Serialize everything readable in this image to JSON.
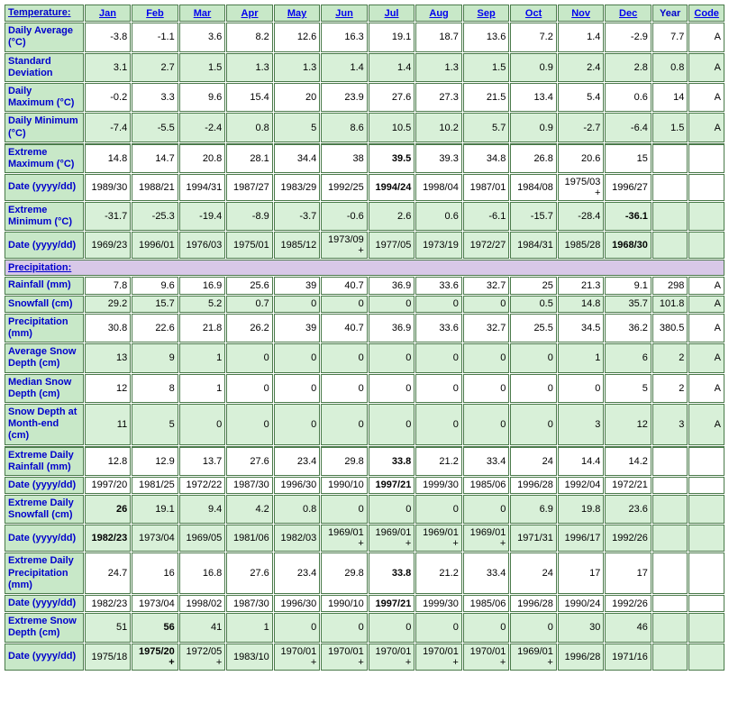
{
  "colors": {
    "header_bg": "#c8e8c8",
    "row_white": "#ffffff",
    "row_green": "#d8f0d8",
    "section_bg": "#d8c8e8",
    "border": "#4a7a4a",
    "link": "#0000cc"
  },
  "header": {
    "corner": "Temperature:",
    "months": [
      "Jan",
      "Feb",
      "Mar",
      "Apr",
      "May",
      "Jun",
      "Jul",
      "Aug",
      "Sep",
      "Oct",
      "Nov",
      "Dec"
    ],
    "year": "Year",
    "code": "Code"
  },
  "sections": [
    {
      "type": "section",
      "label": "Precipitation:"
    }
  ],
  "rows": [
    {
      "id": "daily_avg",
      "label": "Daily Average (°C)",
      "shade": "white",
      "vals": [
        "-3.8",
        "-1.1",
        "3.6",
        "8.2",
        "12.6",
        "16.3",
        "19.1",
        "18.7",
        "13.6",
        "7.2",
        "1.4",
        "-2.9"
      ],
      "year": "7.7",
      "code": "A",
      "bold": []
    },
    {
      "id": "std_dev",
      "label": "Standard Deviation",
      "shade": "green",
      "vals": [
        "3.1",
        "2.7",
        "1.5",
        "1.3",
        "1.3",
        "1.4",
        "1.4",
        "1.3",
        "1.5",
        "0.9",
        "2.4",
        "2.8"
      ],
      "year": "0.8",
      "code": "A",
      "bold": []
    },
    {
      "id": "daily_max",
      "label": "Daily Maximum (°C)",
      "shade": "white",
      "vals": [
        "-0.2",
        "3.3",
        "9.6",
        "15.4",
        "20",
        "23.9",
        "27.6",
        "27.3",
        "21.5",
        "13.4",
        "5.4",
        "0.6"
      ],
      "year": "14",
      "code": "A",
      "bold": []
    },
    {
      "id": "daily_min",
      "label": "Daily Minimum (°C)",
      "shade": "green",
      "vals": [
        "-7.4",
        "-5.5",
        "-2.4",
        "0.8",
        "5",
        "8.6",
        "10.5",
        "10.2",
        "5.7",
        "0.9",
        "-2.7",
        "-6.4"
      ],
      "year": "1.5",
      "code": "A",
      "bold": []
    },
    {
      "id": "ext_max",
      "label": "Extreme Maximum (°C)",
      "shade": "white",
      "vals": [
        "14.8",
        "14.7",
        "20.8",
        "28.1",
        "34.4",
        "38",
        "39.5",
        "39.3",
        "34.8",
        "26.8",
        "20.6",
        "15"
      ],
      "year": "",
      "code": "",
      "bold": [
        6
      ],
      "doubleTop": true
    },
    {
      "id": "ext_max_date",
      "label": "Date (yyyy/dd)",
      "shade": "white",
      "vals": [
        "1989/30",
        "1988/21",
        "1994/31",
        "1987/27",
        "1983/29",
        "1992/25",
        "1994/24",
        "1998/04",
        "1987/01",
        "1984/08",
        "1975/03+",
        "1996/27"
      ],
      "year": "",
      "code": "",
      "bold": [
        6
      ]
    },
    {
      "id": "ext_min",
      "label": "Extreme Minimum (°C)",
      "shade": "green",
      "vals": [
        "-31.7",
        "-25.3",
        "-19.4",
        "-8.9",
        "-3.7",
        "-0.6",
        "2.6",
        "0.6",
        "-6.1",
        "-15.7",
        "-28.4",
        "-36.1"
      ],
      "year": "",
      "code": "",
      "bold": [
        11
      ]
    },
    {
      "id": "ext_min_date",
      "label": "Date (yyyy/dd)",
      "shade": "green",
      "vals": [
        "1969/23",
        "1996/01",
        "1976/03",
        "1975/01",
        "1985/12",
        "1973/09+",
        "1977/05",
        "1973/19",
        "1972/27",
        "1984/31",
        "1985/28",
        "1968/30"
      ],
      "year": "",
      "code": "",
      "bold": [
        11
      ]
    },
    {
      "type": "section",
      "label": "Precipitation:"
    },
    {
      "id": "rainfall",
      "label": "Rainfall (mm)",
      "shade": "white",
      "vals": [
        "7.8",
        "9.6",
        "16.9",
        "25.6",
        "39",
        "40.7",
        "36.9",
        "33.6",
        "32.7",
        "25",
        "21.3",
        "9.1"
      ],
      "year": "298",
      "code": "A",
      "bold": []
    },
    {
      "id": "snowfall",
      "label": "Snowfall (cm)",
      "shade": "green",
      "vals": [
        "29.2",
        "15.7",
        "5.2",
        "0.7",
        "0",
        "0",
        "0",
        "0",
        "0",
        "0.5",
        "14.8",
        "35.7"
      ],
      "year": "101.8",
      "code": "A",
      "bold": []
    },
    {
      "id": "precip",
      "label": "Precipitation (mm)",
      "shade": "white",
      "vals": [
        "30.8",
        "22.6",
        "21.8",
        "26.2",
        "39",
        "40.7",
        "36.9",
        "33.6",
        "32.7",
        "25.5",
        "34.5",
        "36.2"
      ],
      "year": "380.5",
      "code": "A",
      "bold": []
    },
    {
      "id": "avg_snow_depth",
      "label": "Average Snow Depth (cm)",
      "shade": "green",
      "vals": [
        "13",
        "9",
        "1",
        "0",
        "0",
        "0",
        "0",
        "0",
        "0",
        "0",
        "1",
        "6"
      ],
      "year": "2",
      "code": "A",
      "bold": []
    },
    {
      "id": "median_snow_depth",
      "label": "Median Snow Depth (cm)",
      "shade": "white",
      "vals": [
        "12",
        "8",
        "1",
        "0",
        "0",
        "0",
        "0",
        "0",
        "0",
        "0",
        "0",
        "5"
      ],
      "year": "2",
      "code": "A",
      "bold": []
    },
    {
      "id": "snow_depth_end",
      "label": "Snow Depth at Month-end (cm)",
      "shade": "green",
      "vals": [
        "11",
        "5",
        "0",
        "0",
        "0",
        "0",
        "0",
        "0",
        "0",
        "0",
        "3",
        "12"
      ],
      "year": "3",
      "code": "A",
      "bold": []
    },
    {
      "id": "ext_daily_rain",
      "label": "Extreme Daily Rainfall (mm)",
      "shade": "white",
      "vals": [
        "12.8",
        "12.9",
        "13.7",
        "27.6",
        "23.4",
        "29.8",
        "33.8",
        "21.2",
        "33.4",
        "24",
        "14.4",
        "14.2"
      ],
      "year": "",
      "code": "",
      "bold": [
        6
      ],
      "doubleTop": true
    },
    {
      "id": "ext_daily_rain_date",
      "label": "Date (yyyy/dd)",
      "shade": "white",
      "vals": [
        "1997/20",
        "1981/25",
        "1972/22",
        "1987/30",
        "1996/30",
        "1990/10",
        "1997/21",
        "1999/30",
        "1985/06",
        "1996/28",
        "1992/04",
        "1972/21"
      ],
      "year": "",
      "code": "",
      "bold": [
        6
      ]
    },
    {
      "id": "ext_daily_snow",
      "label": "Extreme Daily Snowfall (cm)",
      "shade": "green",
      "vals": [
        "26",
        "19.1",
        "9.4",
        "4.2",
        "0.8",
        "0",
        "0",
        "0",
        "0",
        "6.9",
        "19.8",
        "23.6"
      ],
      "year": "",
      "code": "",
      "bold": [
        0
      ]
    },
    {
      "id": "ext_daily_snow_date",
      "label": "Date (yyyy/dd)",
      "shade": "green",
      "vals": [
        "1982/23",
        "1973/04",
        "1969/05",
        "1981/06",
        "1982/03",
        "1969/01+",
        "1969/01+",
        "1969/01+",
        "1969/01+",
        "1971/31",
        "1996/17",
        "1992/26"
      ],
      "year": "",
      "code": "",
      "bold": [
        0
      ]
    },
    {
      "id": "ext_daily_precip",
      "label": "Extreme Daily Precipitation (mm)",
      "shade": "white",
      "vals": [
        "24.7",
        "16",
        "16.8",
        "27.6",
        "23.4",
        "29.8",
        "33.8",
        "21.2",
        "33.4",
        "24",
        "17",
        "17"
      ],
      "year": "",
      "code": "",
      "bold": [
        6
      ]
    },
    {
      "id": "ext_daily_precip_date",
      "label": "Date (yyyy/dd)",
      "shade": "white",
      "vals": [
        "1982/23",
        "1973/04",
        "1998/02",
        "1987/30",
        "1996/30",
        "1990/10",
        "1997/21",
        "1999/30",
        "1985/06",
        "1996/28",
        "1990/24",
        "1992/26"
      ],
      "year": "",
      "code": "",
      "bold": [
        6
      ]
    },
    {
      "id": "ext_snow_depth",
      "label": "Extreme Snow Depth (cm)",
      "shade": "green",
      "vals": [
        "51",
        "56",
        "41",
        "1",
        "0",
        "0",
        "0",
        "0",
        "0",
        "0",
        "30",
        "46"
      ],
      "year": "",
      "code": "",
      "bold": [
        1
      ]
    },
    {
      "id": "ext_snow_depth_date",
      "label": "Date (yyyy/dd)",
      "shade": "green",
      "vals": [
        "1975/18",
        "1975/20+",
        "1972/05+",
        "1983/10",
        "1970/01+",
        "1970/01+",
        "1970/01+",
        "1970/01+",
        "1970/01+",
        "1969/01+",
        "1996/28",
        "1971/16"
      ],
      "year": "",
      "code": "",
      "bold": [
        1
      ]
    }
  ]
}
